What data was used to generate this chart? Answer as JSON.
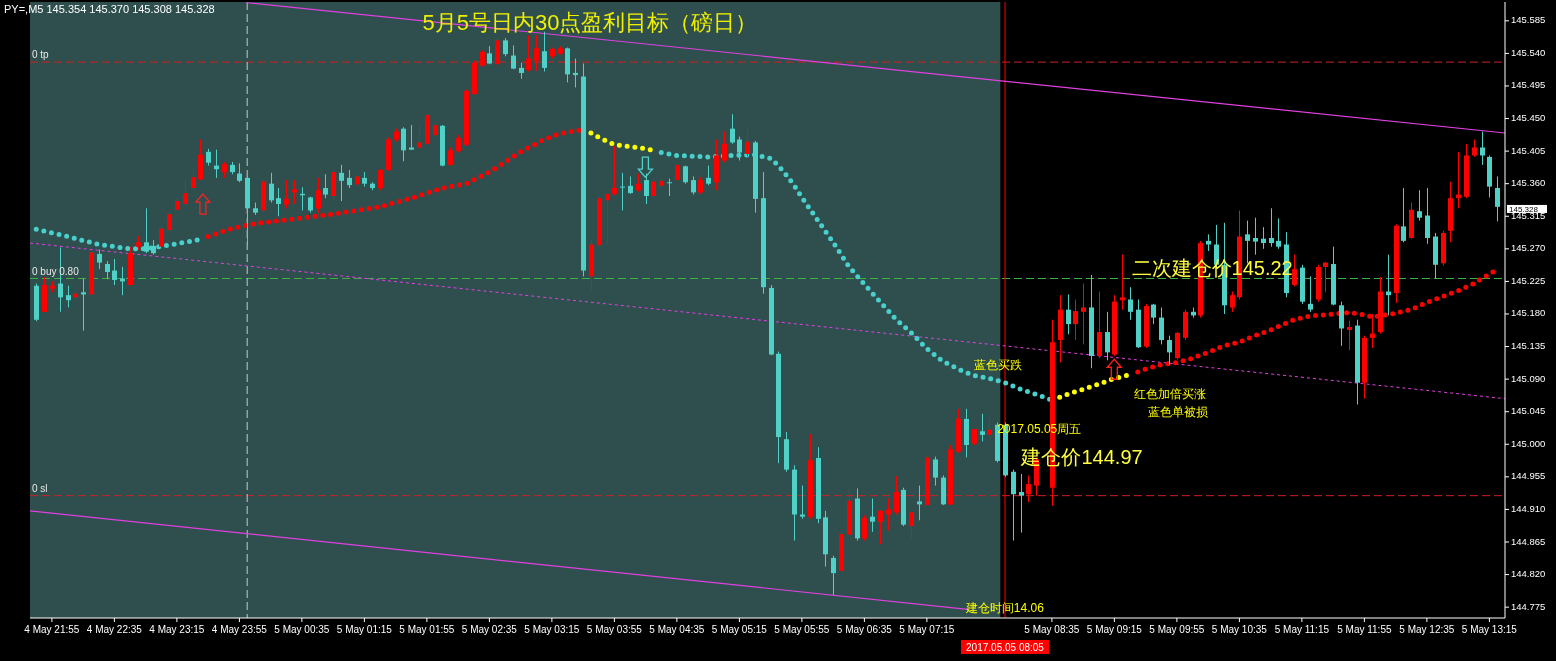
{
  "chart_data": {
    "type": "candlestick",
    "title": "5月5号日内30点盈利目标（磅日）",
    "colors": [
      "#4fd1c8",
      "#ff0000",
      "#ff0000",
      "#4fd1c8",
      "#4fd1c8",
      "#ff0000",
      "#4fd1c8",
      "#ff0000",
      "#4fd1c8",
      "#4fd1c8",
      "#4fd1c8",
      "#4fd1c8",
      "#ff0000",
      "#ff0000",
      "#4fd1c8",
      "#4fd1c8",
      "#ff0000",
      "#ff0000",
      "#ff0000",
      "#ff0000",
      "#ff0000",
      "#ff0000",
      "#4fd1c8",
      "#4fd1c8",
      "#ff0000",
      "#4fd1c8",
      "#4fd1c8",
      "#4fd1c8",
      "#4fd1c8",
      "#ff0000",
      "#4fd1c8",
      "#4fd1c8",
      "#ff0000",
      "#ff0000",
      "#4fd1c8",
      "#4fd1c8",
      "#ff0000",
      "#4fd1c8",
      "#ff0000",
      "#4fd1c8",
      "#4fd1c8",
      "#ff0000",
      "#4fd1c8",
      "#4fd1c8",
      "#ff0000",
      "#ff0000",
      "#ff0000",
      "#4fd1c8",
      "#4fd1c8",
      "#ff0000",
      "#ff0000",
      "#ff0000",
      "#4fd1c8",
      "#ff0000",
      "#ff0000",
      "#ff0000",
      "#ff0000",
      "#ff0000",
      "#4fd1c8",
      "#ff0000",
      "#4fd1c8",
      "#4fd1c8",
      "#4fd1c8",
      "#ff0000",
      "#ff0000",
      "#4fd1c8",
      "#ff0000",
      "#ff0000",
      "#4fd1c8",
      "#4fd1c8",
      "#4fd1c8",
      "#ff0000",
      "#ff0000",
      "#ff0000",
      "#ff0000",
      "#4fd1c8",
      "#4fd1c8",
      "#ff0000",
      "#4fd1c8",
      "#ff0000",
      "#ff0000",
      "#4fd1c8",
      "#ff0000",
      "#4fd1c8",
      "#4fd1c8",
      "#ff0000",
      "#4fd1c8",
      "#ff0000",
      "#ff0000",
      "#4fd1c8",
      "#4fd1c8",
      "#ff0000",
      "#4fd1c8",
      "#4fd1c8",
      "#4fd1c8",
      "#4fd1c8",
      "#4fd1c8",
      "#4fd1c8",
      "#4fd1c8",
      "#ff0000",
      "#4fd1c8",
      "#4fd1c8",
      "#4fd1c8",
      "#ff0000",
      "#ff0000",
      "#4fd1c8",
      "#ff0000",
      "#4fd1c8",
      "#ff0000",
      "#ff0000",
      "#ff0000",
      "#4fd1c8",
      "#ff0000",
      "#4fd1c8",
      "#ff0000",
      "#4fd1c8",
      "#4fd1c8",
      "#ff0000",
      "#ff0000",
      "#4fd1c8",
      "#ff0000",
      "#4fd1c8",
      "#ff0000",
      "#4fd1c8",
      "#4fd1c8",
      "#4fd1c8",
      "#4fd1c8",
      "#ff0000",
      "#ff0000",
      "#ff0000",
      "#ff0000",
      "#4fd1c8",
      "#ff0000",
      "#ff0000",
      "#4fd1c8",
      "#ff0000",
      "#4fd1c8",
      "#ff0000",
      "#ff0000",
      "#4fd1c8",
      "#4fd1c8",
      "#ff0000",
      "#4fd1c8",
      "#4fd1c8",
      "#4fd1c8",
      "#ff0000",
      "#ff0000",
      "#4fd1c8",
      "#ff0000",
      "#4fd1c8",
      "#4fd1c8",
      "#4fd1c8",
      "#ff0000",
      "#ff0000",
      "#4fd1c8",
      "#4fd1c8",
      "#4fd1c8",
      "#4fd1c8",
      "#4fd1c8",
      "#4fd1c8",
      "#ff0000",
      "#4fd1c8",
      "#4fd1c8",
      "#ff0000",
      "#ff0000",
      "#4fd1c8",
      "#4fd1c8",
      "#ff0000",
      "#4fd1c8",
      "#ff0000",
      "#ff0000",
      "#ff0000",
      "#4fd1c8",
      "#ff0000",
      "#4fd1c8",
      "#ff0000",
      "#4fd1c8",
      "#4fd1c8",
      "#4fd1c8",
      "#ff0000",
      "#ff0000",
      "#ff0000",
      "#ff0000",
      "#ff0000",
      "#4fd1c8",
      "#4fd1c8",
      "#4fd1c8"
    ],
    "x": [
      "2017-05-04T21:45",
      "2017-05-04T21:50",
      "2017-05-04T21:55",
      "2017-05-04T22:00",
      "2017-05-04T22:05",
      "2017-05-04T22:10",
      "2017-05-04T22:15",
      "2017-05-04T22:20",
      "2017-05-04T22:25",
      "2017-05-04T22:30",
      "2017-05-04T22:35",
      "2017-05-04T22:40",
      "2017-05-04T22:45",
      "2017-05-04T22:50",
      "2017-05-04T22:55",
      "2017-05-04T23:00",
      "2017-05-04T23:05",
      "2017-05-04T23:10",
      "2017-05-04T23:15",
      "2017-05-04T23:20",
      "2017-05-04T23:25",
      "2017-05-04T23:30",
      "2017-05-04T23:35",
      "2017-05-04T23:40",
      "2017-05-04T23:45",
      "2017-05-04T23:50",
      "2017-05-04T23:55",
      "2017-05-05T00:00",
      "2017-05-05T00:05",
      "2017-05-05T00:10",
      "2017-05-05T00:15",
      "2017-05-05T00:20",
      "2017-05-05T00:25",
      "2017-05-05T00:30",
      "2017-05-05T00:35",
      "2017-05-05T00:40",
      "2017-05-05T00:45",
      "2017-05-05T00:50",
      "2017-05-05T00:55",
      "2017-05-05T01:00",
      "2017-05-05T01:05",
      "2017-05-05T01:10",
      "2017-05-05T01:15",
      "2017-05-05T01:20",
      "2017-05-05T01:25",
      "2017-05-05T01:30",
      "2017-05-05T01:35",
      "2017-05-05T01:40",
      "2017-05-05T01:45",
      "2017-05-05T01:50",
      "2017-05-05T01:55",
      "2017-05-05T02:00",
      "2017-05-05T02:05",
      "2017-05-05T02:10",
      "2017-05-05T02:15",
      "2017-05-05T02:20",
      "2017-05-05T02:25",
      "2017-05-05T02:30",
      "2017-05-05T02:35",
      "2017-05-05T02:40",
      "2017-05-05T02:45",
      "2017-05-05T02:50",
      "2017-05-05T02:55",
      "2017-05-05T03:00",
      "2017-05-05T03:05",
      "2017-05-05T03:10",
      "2017-05-05T03:15",
      "2017-05-05T03:20",
      "2017-05-05T03:25",
      "2017-05-05T03:30",
      "2017-05-05T03:35",
      "2017-05-05T03:40",
      "2017-05-05T03:45",
      "2017-05-05T03:50",
      "2017-05-05T03:55",
      "2017-05-05T04:00",
      "2017-05-05T04:05",
      "2017-05-05T04:10",
      "2017-05-05T04:15",
      "2017-05-05T04:20",
      "2017-05-05T04:25",
      "2017-05-05T04:30",
      "2017-05-05T04:35",
      "2017-05-05T04:40",
      "2017-05-05T04:45",
      "2017-05-05T04:50",
      "2017-05-05T04:55",
      "2017-05-05T05:00",
      "2017-05-05T05:05",
      "2017-05-05T05:10",
      "2017-05-05T05:15",
      "2017-05-05T05:20",
      "2017-05-05T05:25",
      "2017-05-05T05:30",
      "2017-05-05T05:35",
      "2017-05-05T05:40",
      "2017-05-05T05:45",
      "2017-05-05T05:50",
      "2017-05-05T05:55",
      "2017-05-05T06:00",
      "2017-05-05T06:05",
      "2017-05-05T06:10",
      "2017-05-05T06:15",
      "2017-05-05T06:20",
      "2017-05-05T06:25",
      "2017-05-05T06:30",
      "2017-05-05T06:35",
      "2017-05-05T06:40",
      "2017-05-05T06:45",
      "2017-05-05T06:50",
      "2017-05-05T06:55",
      "2017-05-05T07:00",
      "2017-05-05T07:05",
      "2017-05-05T07:10",
      "2017-05-05T07:15",
      "2017-05-05T07:20",
      "2017-05-05T07:25",
      "2017-05-05T07:30",
      "2017-05-05T07:35",
      "2017-05-05T07:40",
      "2017-05-05T07:45",
      "2017-05-05T07:50",
      "2017-05-05T07:55",
      "2017-05-05T08:00",
      "2017-05-05T08:05",
      "2017-05-05T08:10",
      "2017-05-05T08:15",
      "2017-05-05T08:20",
      "2017-05-05T08:25",
      "2017-05-05T08:35",
      "2017-05-05T08:40",
      "2017-05-05T08:45",
      "2017-05-05T08:50",
      "2017-05-05T08:55",
      "2017-05-05T09:00",
      "2017-05-05T09:05",
      "2017-05-05T09:10",
      "2017-05-05T09:15",
      "2017-05-05T09:20",
      "2017-05-05T09:25",
      "2017-05-05T09:30",
      "2017-05-05T09:35",
      "2017-05-05T09:40",
      "2017-05-05T09:45",
      "2017-05-05T09:50",
      "2017-05-05T09:55",
      "2017-05-05T10:00",
      "2017-05-05T10:05",
      "2017-05-05T10:10",
      "2017-05-05T10:15",
      "2017-05-05T10:20",
      "2017-05-05T10:25",
      "2017-05-05T10:30",
      "2017-05-05T10:35",
      "2017-05-05T10:40",
      "2017-05-05T10:45",
      "2017-05-05T10:50",
      "2017-05-05T10:55",
      "2017-05-05T11:00",
      "2017-05-05T11:05",
      "2017-05-05T11:10",
      "2017-05-05T11:15",
      "2017-05-05T11:20",
      "2017-05-05T11:25",
      "2017-05-05T11:30",
      "2017-05-05T11:35",
      "2017-05-05T11:40",
      "2017-05-05T11:45",
      "2017-05-05T11:50",
      "2017-05-05T11:55",
      "2017-05-05T12:00",
      "2017-05-05T12:05",
      "2017-05-05T12:10",
      "2017-05-05T12:15",
      "2017-05-05T12:20",
      "2017-05-05T12:25",
      "2017-05-05T12:30",
      "2017-05-05T12:35",
      "2017-05-05T12:40",
      "2017-05-05T12:45",
      "2017-05-05T12:50",
      "2017-05-05T12:55",
      "2017-05-05T13:00",
      "2017-05-05T13:05",
      "2017-05-05T13:10",
      "2017-05-05T13:15",
      "2017-05-05T13:20"
    ],
    "ohlc": [
      [
        145.219,
        145.222,
        145.17,
        145.172
      ],
      [
        145.183,
        145.231,
        145.183,
        145.22
      ],
      [
        145.215,
        145.225,
        145.21,
        145.219
      ],
      [
        145.222,
        145.272,
        145.183,
        145.203
      ],
      [
        145.206,
        145.219,
        145.189,
        145.199
      ],
      [
        145.203,
        145.211,
        145.2,
        145.208
      ],
      [
        145.21,
        145.229,
        145.157,
        145.207
      ],
      [
        145.207,
        145.267,
        145.206,
        145.265
      ],
      [
        145.263,
        145.269,
        145.242,
        145.251
      ],
      [
        145.249,
        145.253,
        145.228,
        145.238
      ],
      [
        145.24,
        145.256,
        145.22,
        145.227
      ],
      [
        145.229,
        145.245,
        145.206,
        145.225
      ],
      [
        145.22,
        145.273,
        145.22,
        145.264
      ],
      [
        145.273,
        145.288,
        145.268,
        145.279
      ],
      [
        145.279,
        145.326,
        145.264,
        145.266
      ],
      [
        145.274,
        145.282,
        145.262,
        145.264
      ],
      [
        145.273,
        145.301,
        145.272,
        145.298
      ],
      [
        145.296,
        145.321,
        145.294,
        145.318
      ],
      [
        145.324,
        145.34,
        145.323,
        145.336
      ],
      [
        145.332,
        145.366,
        145.329,
        145.347
      ],
      [
        145.354,
        145.379,
        145.351,
        145.369
      ],
      [
        145.366,
        145.421,
        145.365,
        145.4
      ],
      [
        145.404,
        145.408,
        145.385,
        145.389
      ],
      [
        145.385,
        145.407,
        145.368,
        145.38
      ],
      [
        145.376,
        145.39,
        145.368,
        145.387
      ],
      [
        145.386,
        145.39,
        145.373,
        145.376
      ],
      [
        145.374,
        145.388,
        145.362,
        145.364
      ],
      [
        145.368,
        145.369,
        145.276,
        145.326
      ],
      [
        145.326,
        145.334,
        145.317,
        145.32
      ],
      [
        145.323,
        145.365,
        145.32,
        145.363
      ],
      [
        145.36,
        145.375,
        145.334,
        145.337
      ],
      [
        145.34,
        145.354,
        145.315,
        145.332
      ],
      [
        145.331,
        145.365,
        145.326,
        145.339
      ],
      [
        145.348,
        145.365,
        145.332,
        145.352
      ],
      [
        145.346,
        145.355,
        145.323,
        145.344
      ],
      [
        145.341,
        145.342,
        145.32,
        145.323
      ],
      [
        145.326,
        145.368,
        145.32,
        145.351
      ],
      [
        145.354,
        145.373,
        145.34,
        145.345
      ],
      [
        145.343,
        145.379,
        145.337,
        145.376
      ],
      [
        145.375,
        145.386,
        145.336,
        145.364
      ],
      [
        145.368,
        145.379,
        145.354,
        145.358
      ],
      [
        145.359,
        145.374,
        145.357,
        145.37
      ],
      [
        145.368,
        145.376,
        145.356,
        145.36
      ],
      [
        145.36,
        145.362,
        145.351,
        145.354
      ],
      [
        145.354,
        145.38,
        145.351,
        145.379
      ],
      [
        145.379,
        145.424,
        145.378,
        145.421
      ],
      [
        145.421,
        145.436,
        145.418,
        145.432
      ],
      [
        145.436,
        145.438,
        145.391,
        145.406
      ],
      [
        145.41,
        145.441,
        145.407,
        145.407
      ],
      [
        145.41,
        145.441,
        145.409,
        145.417
      ],
      [
        145.415,
        145.457,
        145.413,
        145.455
      ],
      [
        145.427,
        145.445,
        145.425,
        145.441
      ],
      [
        145.44,
        145.441,
        145.384,
        145.385
      ],
      [
        145.386,
        145.41,
        145.385,
        145.406
      ],
      [
        145.405,
        145.427,
        145.403,
        145.423
      ],
      [
        145.414,
        145.49,
        145.412,
        145.488
      ],
      [
        145.484,
        145.53,
        145.483,
        145.527
      ],
      [
        145.523,
        145.544,
        145.522,
        145.542
      ],
      [
        145.54,
        145.55,
        145.525,
        145.526
      ],
      [
        145.525,
        145.562,
        145.524,
        145.558
      ],
      [
        145.558,
        145.561,
        145.536,
        145.539
      ],
      [
        145.537,
        145.551,
        145.518,
        145.519
      ],
      [
        145.52,
        145.527,
        145.505,
        145.513
      ],
      [
        145.517,
        145.565,
        145.515,
        145.533
      ],
      [
        145.53,
        145.565,
        145.516,
        145.547
      ],
      [
        145.543,
        145.57,
        145.515,
        145.52
      ],
      [
        145.536,
        145.548,
        145.533,
        145.546
      ],
      [
        145.54,
        145.55,
        145.538,
        145.547
      ],
      [
        145.547,
        145.548,
        145.5,
        145.511
      ],
      [
        145.513,
        145.533,
        145.493,
        145.51
      ],
      [
        145.508,
        145.526,
        145.232,
        145.24
      ],
      [
        145.232,
        145.284,
        145.212,
        145.276
      ],
      [
        145.275,
        145.343,
        145.273,
        145.34
      ],
      [
        145.337,
        145.347,
        145.276,
        145.346
      ],
      [
        145.346,
        145.412,
        145.344,
        145.354
      ],
      [
        145.356,
        145.375,
        145.323,
        145.355
      ],
      [
        145.357,
        145.37,
        145.346,
        145.347
      ],
      [
        145.351,
        145.374,
        145.349,
        145.36
      ],
      [
        145.365,
        145.374,
        145.332,
        145.343
      ],
      [
        145.343,
        145.366,
        145.342,
        145.363
      ],
      [
        145.357,
        145.367,
        145.355,
        145.364
      ],
      [
        145.362,
        145.367,
        145.343,
        145.361
      ],
      [
        145.365,
        145.388,
        145.364,
        145.386
      ],
      [
        145.384,
        145.385,
        145.36,
        145.362
      ],
      [
        145.365,
        145.37,
        145.345,
        145.348
      ],
      [
        145.348,
        145.369,
        145.346,
        145.365
      ],
      [
        145.368,
        145.385,
        145.358,
        145.36
      ],
      [
        145.362,
        145.421,
        145.351,
        145.399
      ],
      [
        145.392,
        145.432,
        145.389,
        145.415
      ],
      [
        145.436,
        145.456,
        145.415,
        145.417
      ],
      [
        145.421,
        145.425,
        145.392,
        145.403
      ],
      [
        145.401,
        145.435,
        145.398,
        145.418
      ],
      [
        145.417,
        145.419,
        145.32,
        145.339
      ],
      [
        145.34,
        145.376,
        145.208,
        145.217
      ],
      [
        145.216,
        145.22,
        145.123,
        145.124
      ],
      [
        145.125,
        145.128,
        144.974,
        145.01
      ],
      [
        145.007,
        145.017,
        144.962,
        144.965
      ],
      [
        144.965,
        144.971,
        144.867,
        144.903
      ],
      [
        144.903,
        144.943,
        144.897,
        144.9
      ],
      [
        144.9,
        145.014,
        144.897,
        144.978
      ],
      [
        144.981,
        144.996,
        144.891,
        144.897
      ],
      [
        144.899,
        144.908,
        144.831,
        144.848
      ],
      [
        144.843,
        144.846,
        144.792,
        144.822
      ],
      [
        144.825,
        144.88,
        144.824,
        144.876
      ],
      [
        144.875,
        144.939,
        144.874,
        144.922
      ],
      [
        144.925,
        144.939,
        144.867,
        144.87
      ],
      [
        144.87,
        144.902,
        144.867,
        144.898
      ],
      [
        144.9,
        144.925,
        144.879,
        144.893
      ],
      [
        144.893,
        144.909,
        144.862,
        144.908
      ],
      [
        144.903,
        144.925,
        144.881,
        144.91
      ],
      [
        144.906,
        144.956,
        144.903,
        144.934
      ],
      [
        144.937,
        144.94,
        144.887,
        144.889
      ],
      [
        144.887,
        144.908,
        144.87,
        144.906
      ],
      [
        144.921,
        144.943,
        144.895,
        144.917
      ],
      [
        144.916,
        144.985,
        144.915,
        144.982
      ],
      [
        144.979,
        144.983,
        144.943,
        144.954
      ],
      [
        144.954,
        144.957,
        144.916,
        144.917
      ],
      [
        144.917,
        144.999,
        144.916,
        144.993
      ],
      [
        144.99,
        145.049,
        144.988,
        145.035
      ],
      [
        145.035,
        145.049,
        144.982,
        144.999
      ],
      [
        145.001,
        145.021,
        144.999,
        145.021
      ],
      [
        145.018,
        145.042,
        145.004,
        145.013
      ],
      [
        145.013,
        145.038,
        145.01,
        145.02
      ],
      [
        145.027,
        145.03,
        144.975,
        144.977
      ],
      [
        145.027,
        145.03,
        144.955,
        144.957
      ],
      [
        144.962,
        144.965,
        144.867,
        144.931
      ],
      [
        144.934,
        144.959,
        144.878,
        144.929
      ],
      [
        144.931,
        144.957,
        144.92,
        144.945
      ],
      [
        144.943,
        144.982,
        144.929,
        144.979
      ],
      [
        144.94,
        145.172,
        144.915,
        145.141
      ],
      [
        145.144,
        145.206,
        145.113,
        145.186
      ],
      [
        145.186,
        145.207,
        145.152,
        145.166
      ],
      [
        145.166,
        145.2,
        145.144,
        145.184
      ],
      [
        145.183,
        145.222,
        145.138,
        145.189
      ],
      [
        145.189,
        145.234,
        145.105,
        145.122
      ],
      [
        145.122,
        145.211,
        145.119,
        145.155
      ],
      [
        145.155,
        145.183,
        145.116,
        145.127
      ],
      [
        145.124,
        145.206,
        145.122,
        145.197
      ],
      [
        145.199,
        145.262,
        145.186,
        145.203
      ],
      [
        145.2,
        145.217,
        145.172,
        145.183
      ],
      [
        145.186,
        145.2,
        145.133,
        145.134
      ],
      [
        145.135,
        145.194,
        145.133,
        145.191
      ],
      [
        145.193,
        145.194,
        145.166,
        145.175
      ],
      [
        145.175,
        145.189,
        145.138,
        145.144
      ],
      [
        145.144,
        145.15,
        145.11,
        145.127
      ],
      [
        145.119,
        145.155,
        145.117,
        145.154
      ],
      [
        145.147,
        145.186,
        145.144,
        145.183
      ],
      [
        145.183,
        145.189,
        145.175,
        145.178
      ],
      [
        145.178,
        145.281,
        145.175,
        145.278
      ],
      [
        145.281,
        145.29,
        145.267,
        145.276
      ],
      [
        145.276,
        145.303,
        145.245,
        145.248
      ],
      [
        145.248,
        145.306,
        145.18,
        145.192
      ],
      [
        145.189,
        145.211,
        145.183,
        145.206
      ],
      [
        145.203,
        145.323,
        145.2,
        145.287
      ],
      [
        145.29,
        145.309,
        145.25,
        145.281
      ],
      [
        145.285,
        145.313,
        145.262,
        145.28
      ],
      [
        145.284,
        145.3,
        145.27,
        145.278
      ],
      [
        145.285,
        145.326,
        145.273,
        145.278
      ],
      [
        145.281,
        145.312,
        145.27,
        145.273
      ],
      [
        145.276,
        145.293,
        145.203,
        145.209
      ],
      [
        145.22,
        145.262,
        145.218,
        145.242
      ],
      [
        145.244,
        145.248,
        145.194,
        145.197
      ],
      [
        145.194,
        145.232,
        145.183,
        145.186
      ],
      [
        145.2,
        145.248,
        145.197,
        145.245
      ],
      [
        145.245,
        145.252,
        145.21,
        145.251
      ],
      [
        145.249,
        145.273,
        145.192,
        145.193
      ],
      [
        145.192,
        145.197,
        145.136,
        145.16
      ],
      [
        145.158,
        145.171,
        145.13,
        145.162
      ],
      [
        145.164,
        145.172,
        145.055,
        145.085
      ],
      [
        145.085,
        145.15,
        145.063,
        145.147
      ],
      [
        145.147,
        145.18,
        145.133,
        145.153
      ],
      [
        145.155,
        145.231,
        145.153,
        145.211
      ],
      [
        145.211,
        145.262,
        145.178,
        145.206
      ],
      [
        145.209,
        145.304,
        145.195,
        145.302
      ],
      [
        145.301,
        145.354,
        145.279,
        145.281
      ],
      [
        145.285,
        145.334,
        145.284,
        145.324
      ],
      [
        145.322,
        145.351,
        145.309,
        145.313
      ],
      [
        145.316,
        145.354,
        145.277,
        145.285
      ],
      [
        145.287,
        145.292,
        145.229,
        145.248
      ],
      [
        145.25,
        145.295,
        145.247,
        145.292
      ],
      [
        145.295,
        145.363,
        145.279,
        145.34
      ],
      [
        145.34,
        145.404,
        145.326,
        145.345
      ],
      [
        145.342,
        145.415,
        145.34,
        145.399
      ],
      [
        145.399,
        145.421,
        145.397,
        145.41
      ],
      [
        145.41,
        145.432,
        145.386,
        145.399
      ],
      [
        145.397,
        145.399,
        145.341,
        145.356
      ],
      [
        145.354,
        145.37,
        145.308,
        145.328
      ]
    ],
    "series": [
      {
        "type": "line",
        "color": "#e040e0",
        "line_style": "solid",
        "x": [
          "2017-05-05T00:00",
          "2017-05-05T13:25"
        ],
        "values": [
          145.61,
          145.43
        ]
      },
      {
        "type": "line",
        "color": "#e040e0",
        "line_style": "dashed",
        "x": [
          "2017-05-04T21:41",
          "2017-05-05T13:25"
        ],
        "values": [
          145.278,
          145.063
        ]
      },
      {
        "type": "line",
        "color": "#e040e0",
        "line_style": "solid",
        "x": [
          "2017-05-04T21:41",
          "2017-05-05T07:41"
        ],
        "values": [
          144.908,
          144.772
        ]
      },
      {
        "type": "line",
        "color": "#48d1cc",
        "line_style": "dotted",
        "x": [
          "2017-05-04T21:45",
          "2017-05-04T22:05",
          "2017-05-04T22:25",
          "2017-05-04T22:45",
          "2017-05-04T22:55",
          "2017-05-04T23:15",
          "2017-05-04T23:25",
          "2017-05-04T23:30"
        ],
        "values": [
          145.297,
          145.287,
          145.276,
          145.27,
          145.27,
          145.277,
          145.281,
          145.283
        ]
      },
      {
        "type": "line",
        "color": "#ff0000",
        "line_style": "dotted",
        "x": [
          "2017-05-04T23:35",
          "2017-05-04T23:50",
          "2017-05-05T00:05",
          "2017-05-05T00:25",
          "2017-05-05T00:55",
          "2017-05-05T01:25",
          "2017-05-05T01:45",
          "2017-05-05T02:05",
          "2017-05-05T02:20",
          "2017-05-05T02:35",
          "2017-05-05T02:55",
          "2017-05-05T03:10",
          "2017-05-05T03:20",
          "2017-05-05T03:35"
        ],
        "values": [
          145.287,
          145.298,
          145.305,
          145.31,
          145.318,
          145.328,
          145.34,
          145.354,
          145.36,
          145.376,
          145.404,
          145.421,
          145.429,
          145.435
        ]
      },
      {
        "type": "line",
        "color": "#ffff00",
        "line_style": "dotted",
        "x": [
          "2017-05-05T03:40",
          "2017-05-05T03:45",
          "2017-05-05T03:55",
          "2017-05-05T04:10",
          "2017-05-05T04:20"
        ],
        "values": [
          145.43,
          145.424,
          145.414,
          145.41,
          145.406
        ]
      },
      {
        "type": "line",
        "color": "#48d1cc",
        "line_style": "dotted",
        "x": [
          "2017-05-05T04:25",
          "2017-05-05T04:35",
          "2017-05-05T04:55",
          "2017-05-05T05:10",
          "2017-05-05T05:25",
          "2017-05-05T05:35",
          "2017-05-05T05:40",
          "2017-05-05T05:45",
          "2017-05-05T05:50",
          "2017-05-05T05:55",
          "2017-05-05T06:05",
          "2017-05-05T06:15",
          "2017-05-05T06:25",
          "2017-05-05T06:35",
          "2017-05-05T06:45",
          "2017-05-05T06:55",
          "2017-05-05T07:05",
          "2017-05-05T07:15",
          "2017-05-05T07:25",
          "2017-05-05T07:35",
          "2017-05-05T07:45",
          "2017-05-05T07:55",
          "2017-05-05T08:05",
          "2017-05-05T08:15",
          "2017-05-05T08:25",
          "2017-05-05T08:35"
        ],
        "values": [
          145.403,
          145.399,
          145.397,
          145.399,
          145.4,
          145.395,
          145.385,
          145.372,
          145.358,
          145.341,
          145.31,
          145.279,
          145.246,
          145.221,
          145.197,
          145.173,
          145.154,
          145.132,
          145.115,
          145.104,
          145.095,
          145.091,
          145.085,
          145.076,
          145.069,
          145.061
        ]
      },
      {
        "type": "line",
        "color": "#ffff00",
        "line_style": "dotted",
        "x": [
          "2017-05-05T08:40",
          "2017-05-05T08:45",
          "2017-05-05T08:55",
          "2017-05-05T09:05",
          "2017-05-05T09:15",
          "2017-05-05T09:25"
        ],
        "values": [
          145.065,
          145.069,
          145.076,
          145.083,
          145.091,
          145.096
        ]
      },
      {
        "type": "line",
        "color": "#ff0000",
        "line_style": "dotted",
        "x": [
          "2017-05-05T09:30",
          "2017-05-05T09:35",
          "2017-05-05T09:45",
          "2017-05-05T09:55",
          "2017-05-05T10:05",
          "2017-05-05T10:15",
          "2017-05-05T10:25",
          "2017-05-05T10:35",
          "2017-05-05T10:45",
          "2017-05-05T10:55",
          "2017-05-05T11:10",
          "2017-05-05T11:20",
          "2017-05-05T11:35",
          "2017-05-05T11:45",
          "2017-05-05T11:55",
          "2017-05-05T12:00",
          "2017-05-05T12:10",
          "2017-05-05T12:25",
          "2017-05-05T12:35",
          "2017-05-05T12:45",
          "2017-05-05T12:55",
          "2017-05-05T13:05",
          "2017-05-05T13:15",
          "2017-05-05T13:20"
        ],
        "values": [
          145.1,
          145.104,
          145.11,
          145.113,
          145.119,
          145.127,
          145.136,
          145.141,
          145.15,
          145.158,
          145.172,
          145.177,
          145.18,
          145.182,
          145.179,
          145.176,
          145.179,
          145.186,
          145.196,
          145.204,
          145.212,
          145.222,
          145.235,
          145.242
        ]
      }
    ],
    "xlim": [
      "2017-05-04T21:41",
      "2017-05-05T13:25"
    ],
    "ylim": [
      144.76,
      145.611
    ],
    "xticks": [
      {
        "value": "2017-05-04T21:55",
        "label": "4 May 21:55"
      },
      {
        "value": "2017-05-04T22:35",
        "label": "4 May 22:35"
      },
      {
        "value": "2017-05-04T23:15",
        "label": "4 May 23:15"
      },
      {
        "value": "2017-05-04T23:55",
        "label": "4 May 23:55"
      },
      {
        "value": "2017-05-05T00:35",
        "label": "5 May 00:35"
      },
      {
        "value": "2017-05-05T01:15",
        "label": "5 May 01:15"
      },
      {
        "value": "2017-05-05T01:55",
        "label": "5 May 01:55"
      },
      {
        "value": "2017-05-05T02:35",
        "label": "5 May 02:35"
      },
      {
        "value": "2017-05-05T03:15",
        "label": "5 May 03:15"
      },
      {
        "value": "2017-05-05T03:55",
        "label": "5 May 03:55"
      },
      {
        "value": "2017-05-05T04:35",
        "label": "5 May 04:35"
      },
      {
        "value": "2017-05-05T05:15",
        "label": "5 May 05:15"
      },
      {
        "value": "2017-05-05T05:55",
        "label": "5 May 05:55"
      },
      {
        "value": "2017-05-05T06:35",
        "label": "5 May 06:35"
      },
      {
        "value": "2017-05-05T07:15",
        "label": "5 May 07:15"
      },
      {
        "value": "2017-05-05T08:35",
        "label": "5 May 08:35"
      },
      {
        "value": "2017-05-05T09:15",
        "label": "5 May 09:15"
      },
      {
        "value": "2017-05-05T09:55",
        "label": "5 May 09:55"
      },
      {
        "value": "2017-05-05T10:35",
        "label": "5 May 10:35"
      },
      {
        "value": "2017-05-05T11:15",
        "label": "5 May 11:15"
      },
      {
        "value": "2017-05-05T11:55",
        "label": "5 May 11:55"
      },
      {
        "value": "2017-05-05T12:35",
        "label": "5 May 12:35"
      },
      {
        "value": "2017-05-05T13:15",
        "label": "5 May 13:15"
      }
    ],
    "yticks": [
      145.585,
      {
        "value": 145.54,
        "label": "145.540"
      },
      145.495,
      {
        "value": 145.45,
        "label": "145.450"
      },
      145.405,
      {
        "value": 145.36,
        "label": "145.360"
      },
      145.315,
      {
        "value": 145.27,
        "label": "145.270"
      },
      145.225,
      {
        "value": 145.18,
        "label": "145.180"
      },
      145.135,
      {
        "value": 145.09,
        "label": "145.090"
      },
      145.045,
      {
        "value": 145.0,
        "label": "145.000"
      },
      144.955,
      {
        "value": 144.91,
        "label": "144.910"
      },
      144.865,
      {
        "value": 144.82,
        "label": "144.820"
      },
      144.775
    ],
    "bands": [
      {
        "axis": "x",
        "from": "2017-05-04T21:41",
        "to": "2017-05-05T08:02",
        "color": "#2f4f4f"
      }
    ],
    "ref_lines": [
      {
        "axis": "y",
        "value": 145.528,
        "label": "0 tp",
        "color": "#d02020",
        "line_style": "dashed"
      },
      {
        "axis": "y",
        "value": 145.229,
        "label": "0 buy 0.80",
        "color": "#3cb043",
        "line_style": "dashed"
      },
      {
        "axis": "y",
        "value": 144.929,
        "label": "0 sl",
        "color": "#d02020",
        "line_style": "dashed"
      },
      {
        "axis": "x",
        "value": "2017-05-05T00:00",
        "color": "#c8c8c8",
        "line_style": "dashed"
      },
      {
        "axis": "x",
        "value": "2017-05-05T08:05",
        "label": "2017.05.05 08:05",
        "color": "#ff0000",
        "line_style": "solid"
      }
    ],
    "annotations": [
      "PY=,M5  145.354 145.370 145.308 145.328",
      {
        "text": "蓝色买跌",
        "x": "2017-05-05T07:45",
        "y": 145.104
      },
      {
        "text": "2017.05.05周五",
        "x": "2017-05-05T08:00",
        "y": 145.015
      },
      {
        "text": "二次建仓价145.22",
        "x": "2017-05-05T09:26",
        "y": 145.234
      },
      "建仓价144.97",
      "红色加倍买涨",
      "蓝色单被损",
      "建仓时间14.06",
      "145.328"
    ]
  }
}
